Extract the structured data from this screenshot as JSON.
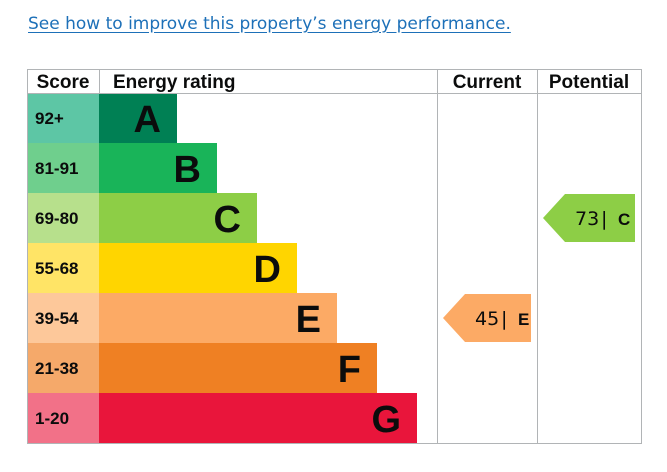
{
  "link": {
    "text": "See how to improve this property’s energy performance."
  },
  "chart_data": {
    "type": "bar",
    "columns": {
      "score": "Score",
      "rating": "Energy rating",
      "current": "Current",
      "potential": "Potential"
    },
    "bands": [
      {
        "score": "92+",
        "letter": "A",
        "color": "#008054",
        "score_bg": "#5dc6a5"
      },
      {
        "score": "81-91",
        "letter": "B",
        "color": "#19b459",
        "score_bg": "#6fcf8d"
      },
      {
        "score": "69-80",
        "letter": "C",
        "color": "#8dce46",
        "score_bg": "#b7e08c"
      },
      {
        "score": "55-68",
        "letter": "D",
        "color": "#ffd500",
        "score_bg": "#ffe466"
      },
      {
        "score": "39-54",
        "letter": "E",
        "color": "#fcaa65",
        "score_bg": "#fdc89a"
      },
      {
        "score": "21-38",
        "letter": "F",
        "color": "#ef8023",
        "score_bg": "#f5a96a"
      },
      {
        "score": "1-20",
        "letter": "G",
        "color": "#e9153b",
        "score_bg": "#f27188"
      }
    ],
    "current": {
      "value": 45,
      "letter": "E",
      "sep": "|",
      "color": "#fcaa65"
    },
    "potential": {
      "value": 73,
      "letter": "C",
      "sep": "|",
      "color": "#8dce46"
    }
  }
}
